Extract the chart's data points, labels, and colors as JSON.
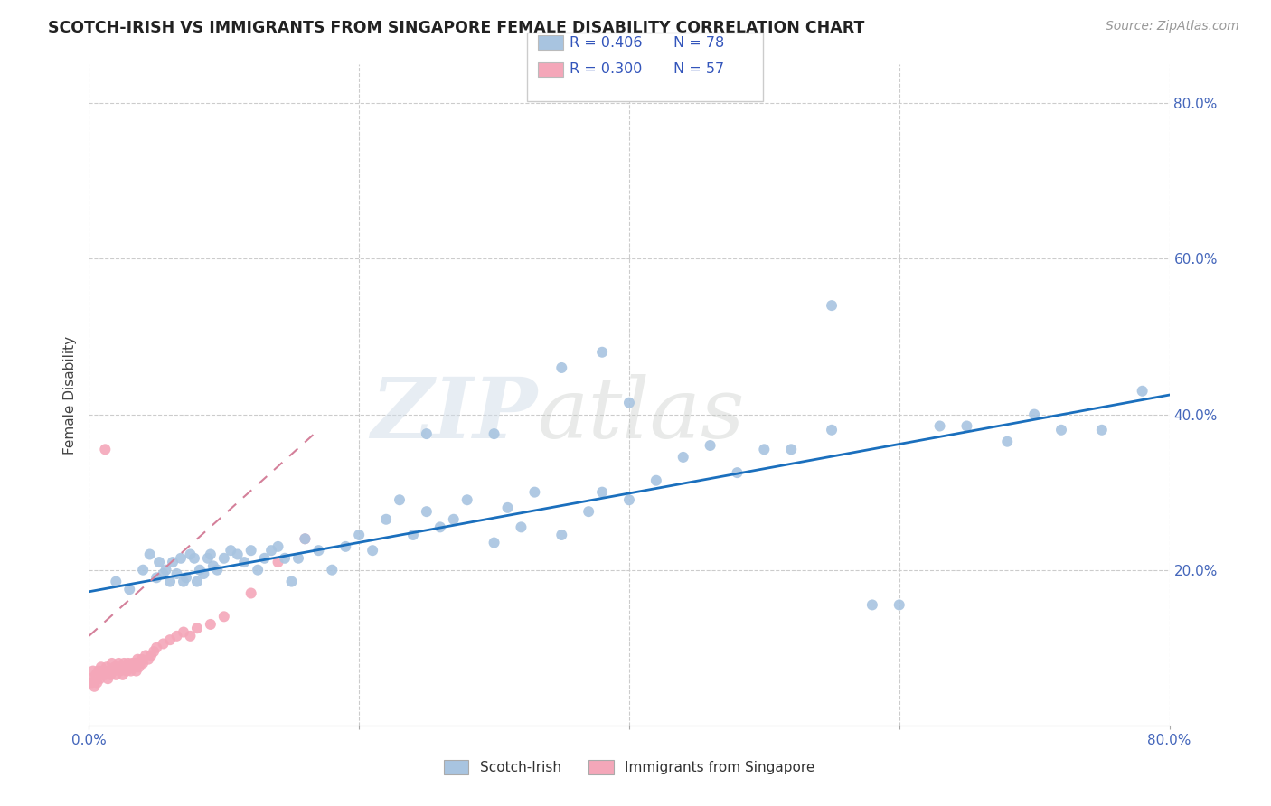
{
  "title": "SCOTCH-IRISH VS IMMIGRANTS FROM SINGAPORE FEMALE DISABILITY CORRELATION CHART",
  "source": "Source: ZipAtlas.com",
  "ylabel": "Female Disability",
  "scotch_irish_R": "0.406",
  "scotch_irish_N": "78",
  "singapore_R": "0.300",
  "singapore_N": "57",
  "scotch_irish_color": "#a8c4e0",
  "singapore_color": "#f4a7b9",
  "trendline_blue_color": "#1a6fbd",
  "trendline_pink_color": "#d4809a",
  "grid_color": "#cccccc",
  "background_color": "#ffffff",
  "watermark_zip": "ZIP",
  "watermark_atlas": "atlas",
  "xlim": [
    0.0,
    0.8
  ],
  "ylim": [
    0.0,
    0.85
  ],
  "scotch_irish_x": [
    0.02,
    0.03,
    0.04,
    0.045,
    0.05,
    0.052,
    0.055,
    0.057,
    0.06,
    0.062,
    0.065,
    0.068,
    0.07,
    0.072,
    0.075,
    0.078,
    0.08,
    0.082,
    0.085,
    0.088,
    0.09,
    0.092,
    0.095,
    0.1,
    0.105,
    0.11,
    0.115,
    0.12,
    0.125,
    0.13,
    0.135,
    0.14,
    0.145,
    0.15,
    0.155,
    0.16,
    0.17,
    0.18,
    0.19,
    0.2,
    0.21,
    0.22,
    0.23,
    0.24,
    0.25,
    0.26,
    0.27,
    0.28,
    0.3,
    0.31,
    0.32,
    0.33,
    0.35,
    0.37,
    0.38,
    0.4,
    0.42,
    0.44,
    0.46,
    0.48,
    0.5,
    0.52,
    0.55,
    0.35,
    0.38,
    0.4,
    0.58,
    0.6,
    0.63,
    0.65,
    0.68,
    0.7,
    0.55,
    0.3,
    0.25,
    0.72,
    0.75,
    0.78
  ],
  "scotch_irish_y": [
    0.185,
    0.175,
    0.2,
    0.22,
    0.19,
    0.21,
    0.195,
    0.2,
    0.185,
    0.21,
    0.195,
    0.215,
    0.185,
    0.19,
    0.22,
    0.215,
    0.185,
    0.2,
    0.195,
    0.215,
    0.22,
    0.205,
    0.2,
    0.215,
    0.225,
    0.22,
    0.21,
    0.225,
    0.2,
    0.215,
    0.225,
    0.23,
    0.215,
    0.185,
    0.215,
    0.24,
    0.225,
    0.2,
    0.23,
    0.245,
    0.225,
    0.265,
    0.29,
    0.245,
    0.275,
    0.255,
    0.265,
    0.29,
    0.235,
    0.28,
    0.255,
    0.3,
    0.245,
    0.275,
    0.3,
    0.29,
    0.315,
    0.345,
    0.36,
    0.325,
    0.355,
    0.355,
    0.54,
    0.46,
    0.48,
    0.415,
    0.155,
    0.155,
    0.385,
    0.385,
    0.365,
    0.4,
    0.38,
    0.375,
    0.375,
    0.38,
    0.38,
    0.43
  ],
  "singapore_x": [
    0.001,
    0.002,
    0.003,
    0.004,
    0.005,
    0.006,
    0.007,
    0.008,
    0.009,
    0.01,
    0.011,
    0.012,
    0.013,
    0.014,
    0.015,
    0.016,
    0.017,
    0.018,
    0.019,
    0.02,
    0.021,
    0.022,
    0.023,
    0.024,
    0.025,
    0.026,
    0.027,
    0.028,
    0.029,
    0.03,
    0.031,
    0.032,
    0.033,
    0.034,
    0.035,
    0.036,
    0.037,
    0.038,
    0.039,
    0.04,
    0.042,
    0.044,
    0.046,
    0.048,
    0.05,
    0.055,
    0.06,
    0.065,
    0.07,
    0.075,
    0.08,
    0.09,
    0.1,
    0.12,
    0.14,
    0.16,
    0.012
  ],
  "singapore_y": [
    0.06,
    0.055,
    0.07,
    0.05,
    0.065,
    0.055,
    0.07,
    0.06,
    0.075,
    0.065,
    0.07,
    0.065,
    0.075,
    0.06,
    0.07,
    0.065,
    0.08,
    0.07,
    0.075,
    0.065,
    0.075,
    0.08,
    0.07,
    0.075,
    0.065,
    0.08,
    0.075,
    0.07,
    0.08,
    0.075,
    0.07,
    0.08,
    0.075,
    0.08,
    0.07,
    0.085,
    0.075,
    0.08,
    0.085,
    0.08,
    0.09,
    0.085,
    0.09,
    0.095,
    0.1,
    0.105,
    0.11,
    0.115,
    0.12,
    0.115,
    0.125,
    0.13,
    0.14,
    0.17,
    0.21,
    0.24,
    0.355
  ]
}
